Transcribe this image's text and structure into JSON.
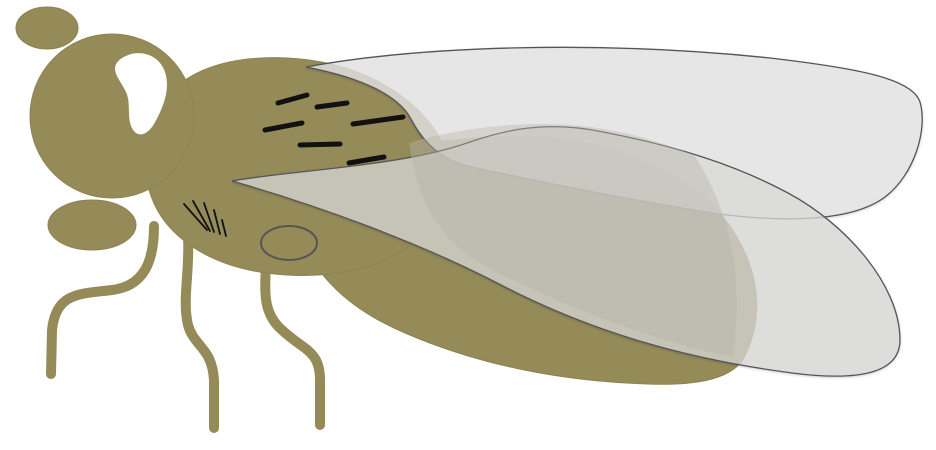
{
  "illustration": {
    "subject_icon": "fly-icon",
    "colors": {
      "background": "#ffffff",
      "body": "#958b59",
      "body_dark": "#8d8352",
      "bristle": "#111111",
      "wing_fill": "#e5e5e5",
      "wing_fill_front": "#d9d9d7",
      "wing_outline": "#555555",
      "eye_highlight": "#ffffff"
    }
  }
}
